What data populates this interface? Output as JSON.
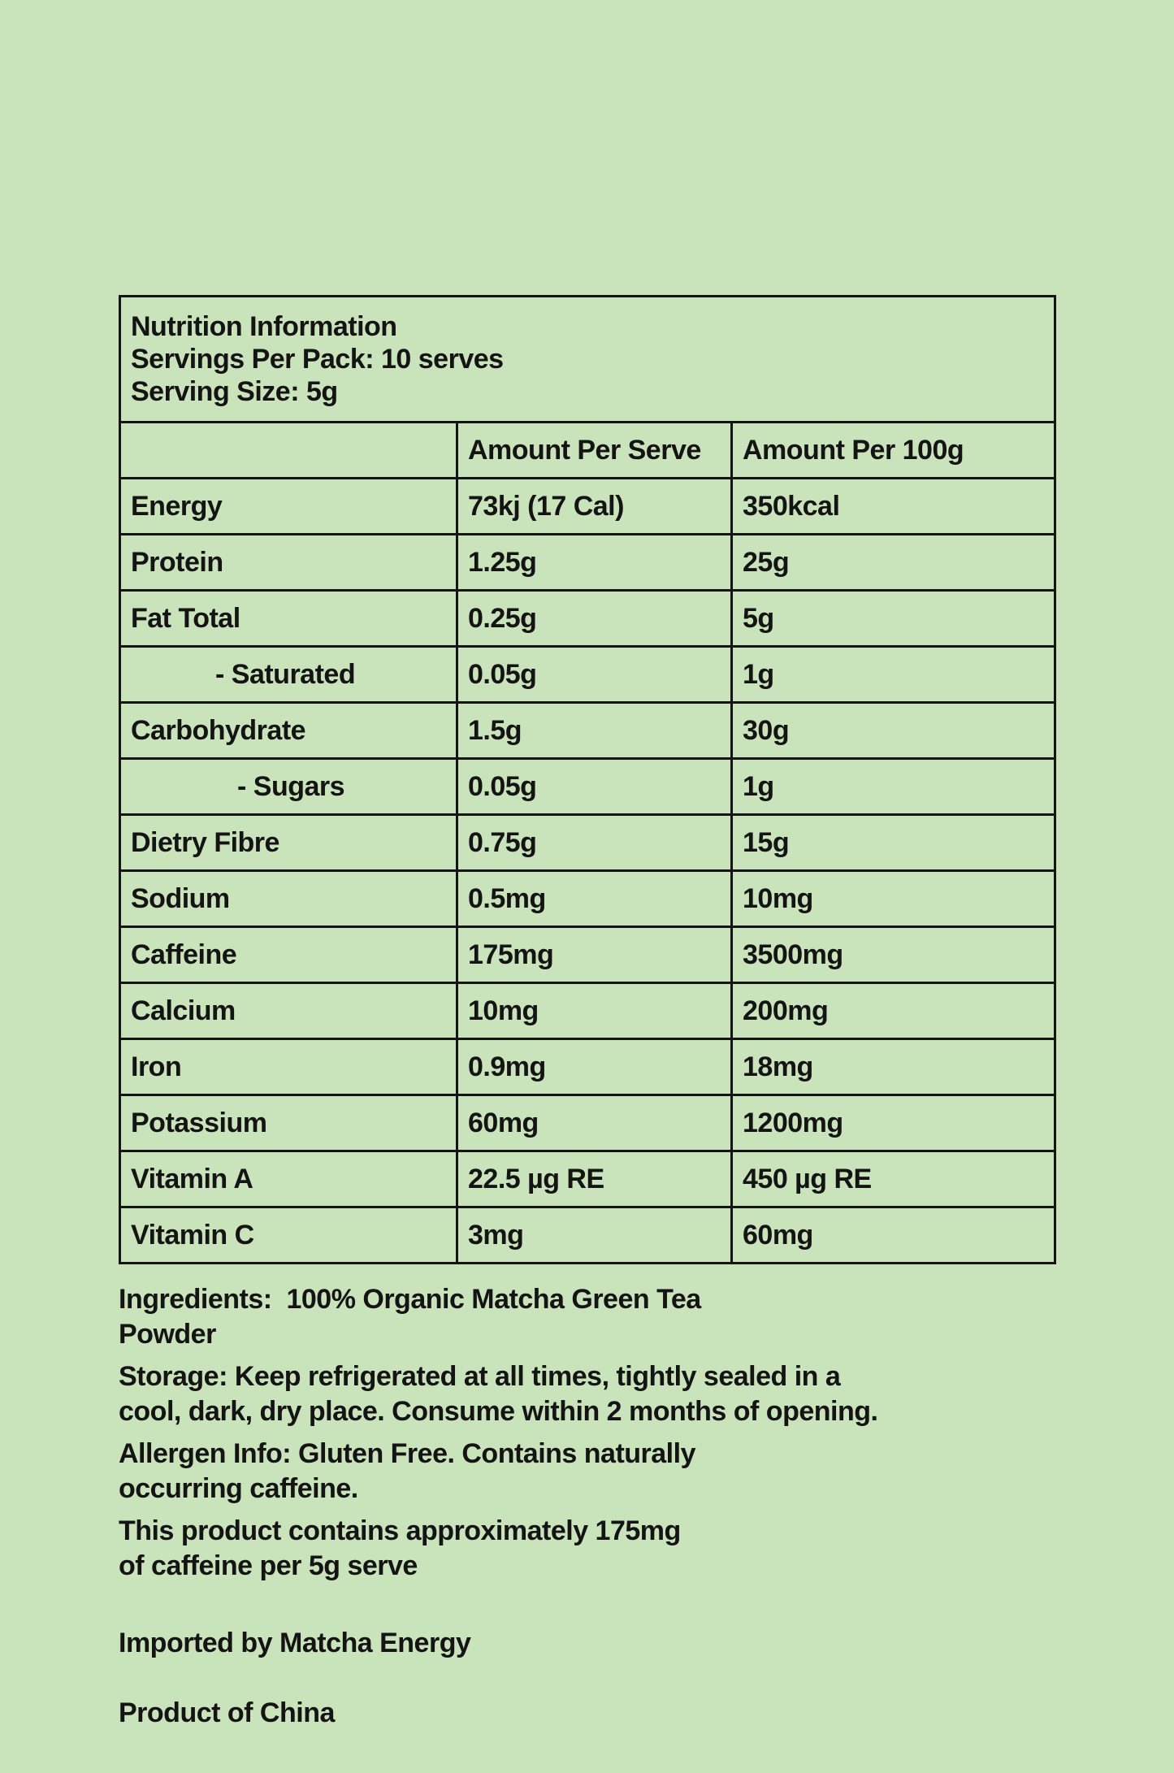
{
  "page": {
    "background_color": "#c9e3ba",
    "text_color": "#141414",
    "border_color": "#141414"
  },
  "table": {
    "title": "Nutrition Information",
    "servings_per_pack": "Servings Per Pack: 10 serves",
    "serving_size": "Serving Size: 5g",
    "columns": [
      "",
      "Amount Per Serve",
      "Amount Per 100g"
    ],
    "rows": [
      {
        "label": "Energy",
        "per_serve": "73kj (17 Cal)",
        "per_100g": "350kcal",
        "indent": 0
      },
      {
        "label": "Protein",
        "per_serve": "1.25g",
        "per_100g": "25g",
        "indent": 0
      },
      {
        "label": "Fat Total",
        "per_serve": "0.25g",
        "per_100g": "5g",
        "indent": 0
      },
      {
        "label": "- Saturated",
        "per_serve": "0.05g",
        "per_100g": "1g",
        "indent": 1
      },
      {
        "label": "Carbohydrate",
        "per_serve": "1.5g",
        "per_100g": "30g",
        "indent": 0
      },
      {
        "label": "- Sugars",
        "per_serve": "0.05g",
        "per_100g": "1g",
        "indent": 2
      },
      {
        "label": "Dietry Fibre",
        "per_serve": "0.75g",
        "per_100g": "15g",
        "indent": 0
      },
      {
        "label": "Sodium",
        "per_serve": "0.5mg",
        "per_100g": "10mg",
        "indent": 0
      },
      {
        "label": "Caffeine",
        "per_serve": "175mg",
        "per_100g": "3500mg",
        "indent": 0
      },
      {
        "label": "Calcium",
        "per_serve": "10mg",
        "per_100g": "200mg",
        "indent": 0
      },
      {
        "label": "Iron",
        "per_serve": "0.9mg",
        "per_100g": "18mg",
        "indent": 0
      },
      {
        "label": "Potassium",
        "per_serve": "60mg",
        "per_100g": "1200mg",
        "indent": 0
      },
      {
        "label": "Vitamin A",
        "per_serve": "22.5 µg RE",
        "per_100g": "450 µg RE",
        "indent": 0
      },
      {
        "label": "Vitamin C",
        "per_serve": "3mg",
        "per_100g": "60mg",
        "indent": 0
      }
    ]
  },
  "notes": {
    "ingredients": "Ingredients:  100% Organic Matcha Green Tea\nPowder",
    "storage": "Storage: Keep refrigerated at all times, tightly sealed in a\ncool, dark, dry place. Consume within 2 months of opening.",
    "allergen": "Allergen Info: Gluten Free. Contains naturally\noccurring caffeine.",
    "caffeine_note": "This product contains approximately 175mg\nof caffeine per 5g serve",
    "imported_by": "Imported by Matcha Energy",
    "origin": "Product of China"
  }
}
